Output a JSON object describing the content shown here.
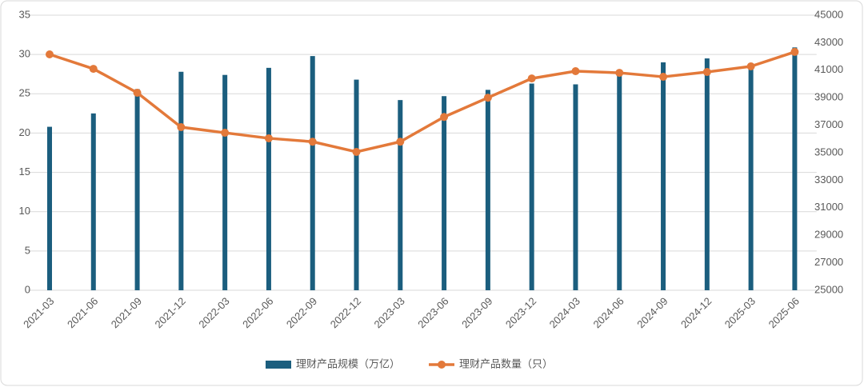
{
  "chart_data": {
    "type": "combo",
    "categories": [
      "2021-03",
      "2021-06",
      "2021-09",
      "2021-12",
      "2022-03",
      "2022-06",
      "2022-09",
      "2022-12",
      "2023-03",
      "2023-06",
      "2023-09",
      "2023-12",
      "2024-03",
      "2024-06",
      "2024-09",
      "2024-12",
      "2025-03",
      "2025-06"
    ],
    "series": [
      {
        "name": "理财产品规模（万亿）",
        "type": "bar",
        "color": "#1b5e7e",
        "values": [
          20.8,
          22.5,
          25.6,
          27.8,
          27.4,
          28.3,
          29.8,
          26.8,
          24.2,
          24.7,
          25.5,
          26.3,
          26.2,
          27.7,
          29.0,
          29.5,
          28.9,
          30.9
        ]
      },
      {
        "name": "理财产品数量（只）",
        "type": "line",
        "axis": "y2",
        "color": "#e3793a",
        "values": [
          42150,
          41100,
          39360,
          36860,
          36450,
          36050,
          35800,
          35060,
          35800,
          37600,
          39000,
          40400,
          40930,
          40810,
          40520,
          40870,
          41280,
          42330
        ]
      }
    ],
    "ylim": [
      0,
      35
    ],
    "yticks": [
      0,
      5,
      10,
      15,
      20,
      25,
      30,
      35
    ],
    "y2lim": [
      25000,
      45000
    ],
    "y2ticks": [
      25000,
      27000,
      29000,
      31000,
      33000,
      35000,
      37000,
      39000,
      41000,
      43000,
      45000
    ],
    "grid": true,
    "legend": "bottom"
  }
}
